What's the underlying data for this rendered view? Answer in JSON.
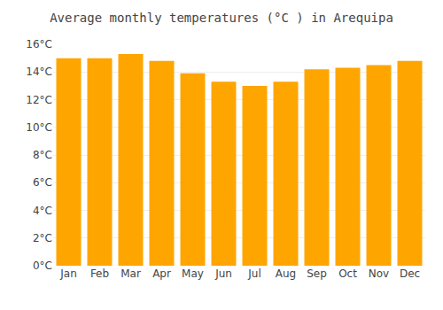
{
  "chart_data": {
    "type": "bar",
    "title": "Average monthly temperatures (°C ) in Arequipa",
    "categories": [
      "Jan",
      "Feb",
      "Mar",
      "Apr",
      "May",
      "Jun",
      "Jul",
      "Aug",
      "Sep",
      "Oct",
      "Nov",
      "Dec"
    ],
    "values": [
      15.0,
      15.0,
      15.3,
      14.8,
      13.9,
      13.3,
      13.0,
      13.3,
      14.2,
      14.3,
      14.5,
      14.8
    ],
    "color": "#FFA500",
    "ylim": [
      0,
      16
    ],
    "yticks": [
      {
        "value": 0,
        "label": "0°C"
      },
      {
        "value": 2,
        "label": "2°C"
      },
      {
        "value": 4,
        "label": "4°C"
      },
      {
        "value": 6,
        "label": "6°C"
      },
      {
        "value": 8,
        "label": "8°C"
      },
      {
        "value": 10,
        "label": "10°C"
      },
      {
        "value": 12,
        "label": "12°C"
      },
      {
        "value": 14,
        "label": "14°C"
      },
      {
        "value": 16,
        "label": "16°C"
      }
    ],
    "grid": true
  }
}
